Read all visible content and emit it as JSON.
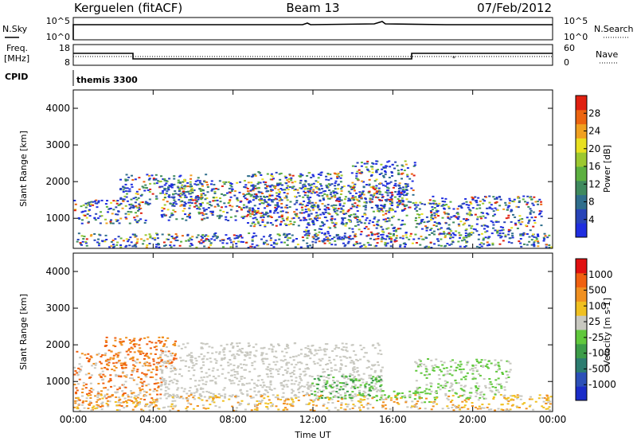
{
  "header": {
    "station": "Kerguelen (fitACF)",
    "beam": "Beam 13",
    "date": "07/Feb/2012"
  },
  "noise_panel": {
    "left_label": "N.Sky",
    "right_label": "N.Search",
    "left_ticks": [
      "10^5",
      "10^0"
    ],
    "right_ticks": [
      "10^5",
      "10^0"
    ]
  },
  "freq_panel": {
    "left_label": "Freq.",
    "left_unit": "[MHz]",
    "left_ticks": [
      "18",
      "8"
    ],
    "right_label": "Nave",
    "right_ticks": [
      "60",
      "0"
    ]
  },
  "cpid_panel": {
    "label": "CPID",
    "value": "themis 3300"
  },
  "chart_data": [
    {
      "type": "heatmap",
      "quantity": "Power",
      "ylabel": "Slant Range [km]",
      "xlabel": "Time UT",
      "x_ticks": [
        "00:00",
        "04:00",
        "08:00",
        "12:00",
        "16:00",
        "20:00",
        "00:00"
      ],
      "y_ticks": [
        1000,
        2000,
        3000,
        4000
      ],
      "ylim": [
        180,
        4500
      ],
      "colorbar": {
        "label": "Power [dB]",
        "tick_labels": [
          "4",
          "8",
          "12",
          "16",
          "20",
          "24",
          "28"
        ],
        "colors": [
          "#1f2ee0",
          "#2844b8",
          "#2f6e8c",
          "#3f8a5e",
          "#5cb040",
          "#9cc830",
          "#e8e020",
          "#f0a020",
          "#ec6410",
          "#e02010"
        ]
      }
    },
    {
      "type": "heatmap",
      "quantity": "Velocity",
      "ylabel": "Slant Range [km]",
      "xlabel": "Time UT",
      "x_ticks": [
        "00:00",
        "04:00",
        "08:00",
        "12:00",
        "16:00",
        "20:00",
        "00:00"
      ],
      "y_ticks": [
        1000,
        2000,
        3000,
        4000
      ],
      "ylim": [
        180,
        4500
      ],
      "colorbar": {
        "label": "Velocity [m s-1]",
        "tick_labels": [
          "1000",
          "500",
          "100",
          "25",
          "-25",
          "-100",
          "-500",
          "-1000"
        ],
        "colors": [
          "#1a2cc8",
          "#2c50b8",
          "#2c7c70",
          "#3c9c48",
          "#60c83c",
          "#c8c8c0",
          "#f0c020",
          "#f09020",
          "#f06010",
          "#e01010"
        ]
      }
    }
  ]
}
